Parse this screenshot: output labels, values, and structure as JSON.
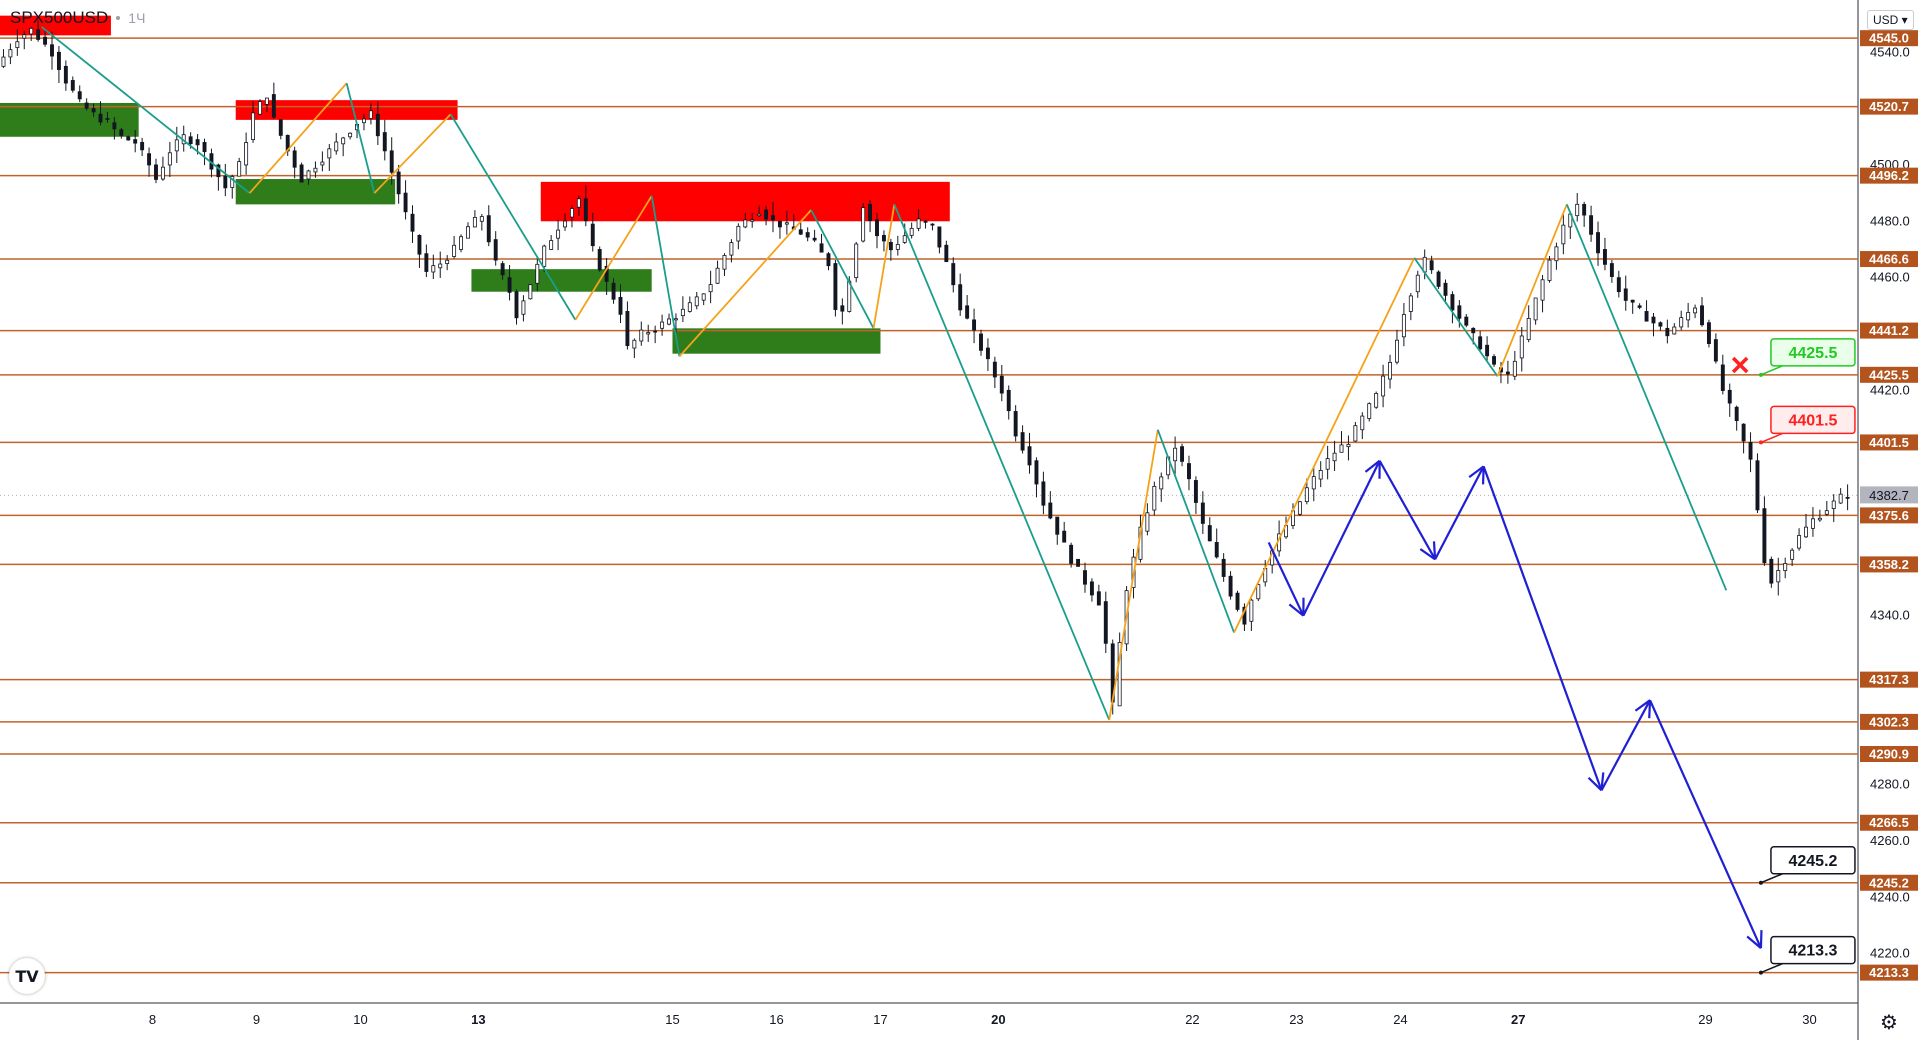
{
  "header": {
    "symbol": "SPX500USD",
    "timeframe": "1Ч"
  },
  "currency_button": "USD",
  "logo_text": "TV",
  "colors": {
    "level_line": "#c0632a",
    "level_label_bg": "#b3541e",
    "supply_zone": "#ff0000",
    "demand_zone": "#2e7d1a",
    "zigzag_down": "#1a9e8c",
    "zigzag_up": "#f5a21b",
    "projection": "#1f1fd6",
    "candle": "#131722",
    "axis_text": "#131722",
    "current_price_bg": "#b2b5be"
  },
  "chart_data": {
    "type": "candlestick",
    "symbol": "SPX500USD",
    "timeframe": "1Ч",
    "y_range": [
      4205,
      4555
    ],
    "y_ticks": [
      "4220.0",
      "4240.0",
      "4260.0",
      "4280.0",
      "4340.0",
      "4420.0",
      "4460.0",
      "4480.0",
      "4500.0",
      "4540.0"
    ],
    "x_ticks": [
      {
        "label": "8",
        "bold": false
      },
      {
        "label": "9",
        "bold": false
      },
      {
        "label": "10",
        "bold": false
      },
      {
        "label": "13",
        "bold": true
      },
      {
        "label": "15",
        "bold": false
      },
      {
        "label": "16",
        "bold": false
      },
      {
        "label": "17",
        "bold": false
      },
      {
        "label": "20",
        "bold": true
      },
      {
        "label": "22",
        "bold": false
      },
      {
        "label": "23",
        "bold": false
      },
      {
        "label": "24",
        "bold": false
      },
      {
        "label": "27",
        "bold": true
      },
      {
        "label": "29",
        "bold": false
      },
      {
        "label": "30",
        "bold": false
      }
    ],
    "levels": [
      "4545.0",
      "4520.7",
      "4496.2",
      "4466.6",
      "4441.2",
      "4425.5",
      "4401.5",
      "4375.6",
      "4358.2",
      "4317.3",
      "4302.3",
      "4290.9",
      "4266.5",
      "4245.2",
      "4213.3"
    ],
    "current_price": "4382.7",
    "price_path": [
      [
        0,
        4535
      ],
      [
        3,
        4545
      ],
      [
        5,
        4548
      ],
      [
        8,
        4540
      ],
      [
        10,
        4530
      ],
      [
        12,
        4522
      ],
      [
        14,
        4518
      ],
      [
        16,
        4515
      ],
      [
        18,
        4510
      ],
      [
        20,
        4508
      ],
      [
        22,
        4500
      ],
      [
        23,
        4495
      ],
      [
        25,
        4505
      ],
      [
        27,
        4510
      ],
      [
        29,
        4508
      ],
      [
        31,
        4500
      ],
      [
        33,
        4492
      ],
      [
        35,
        4500
      ],
      [
        37,
        4518
      ],
      [
        39,
        4525
      ],
      [
        40,
        4516
      ],
      [
        42,
        4505
      ],
      [
        44,
        4495
      ],
      [
        46,
        4500
      ],
      [
        48,
        4505
      ],
      [
        50,
        4510
      ],
      [
        52,
        4515
      ],
      [
        54,
        4518
      ],
      [
        56,
        4505
      ],
      [
        58,
        4490
      ],
      [
        60,
        4475
      ],
      [
        62,
        4462
      ],
      [
        64,
        4465
      ],
      [
        66,
        4470
      ],
      [
        68,
        4478
      ],
      [
        70,
        4482
      ],
      [
        72,
        4465
      ],
      [
        74,
        4455
      ],
      [
        75,
        4447
      ],
      [
        77,
        4458
      ],
      [
        79,
        4470
      ],
      [
        81,
        4478
      ],
      [
        83,
        4485
      ],
      [
        84,
        4488
      ],
      [
        86,
        4470
      ],
      [
        88,
        4458
      ],
      [
        90,
        4448
      ],
      [
        91,
        4435
      ],
      [
        93,
        4440
      ],
      [
        95,
        4442
      ],
      [
        97,
        4445
      ],
      [
        99,
        4448
      ],
      [
        101,
        4452
      ],
      [
        103,
        4458
      ],
      [
        105,
        4468
      ],
      [
        107,
        4478
      ],
      [
        110,
        4484
      ],
      [
        112,
        4480
      ],
      [
        114,
        4478
      ],
      [
        116,
        4476
      ],
      [
        118,
        4472
      ],
      [
        120,
        4465
      ],
      [
        121,
        4450
      ],
      [
        122,
        4448
      ],
      [
        123,
        4460
      ],
      [
        125,
        4486
      ],
      [
        127,
        4475
      ],
      [
        129,
        4470
      ],
      [
        131,
        4475
      ],
      [
        133,
        4480
      ],
      [
        135,
        4478
      ],
      [
        137,
        4465
      ],
      [
        139,
        4450
      ],
      [
        141,
        4440
      ],
      [
        143,
        4430
      ],
      [
        145,
        4420
      ],
      [
        147,
        4405
      ],
      [
        149,
        4395
      ],
      [
        151,
        4380
      ],
      [
        153,
        4370
      ],
      [
        155,
        4360
      ],
      [
        157,
        4352
      ],
      [
        159,
        4345
      ],
      [
        160,
        4330
      ],
      [
        161,
        4308
      ],
      [
        162,
        4330
      ],
      [
        163,
        4350
      ],
      [
        165,
        4370
      ],
      [
        167,
        4385
      ],
      [
        169,
        4395
      ],
      [
        170,
        4400
      ],
      [
        172,
        4388
      ],
      [
        174,
        4372
      ],
      [
        176,
        4360
      ],
      [
        178,
        4348
      ],
      [
        180,
        4338
      ],
      [
        181,
        4346
      ],
      [
        183,
        4358
      ],
      [
        185,
        4368
      ],
      [
        187,
        4376
      ],
      [
        189,
        4385
      ],
      [
        191,
        4392
      ],
      [
        193,
        4398
      ],
      [
        195,
        4402
      ],
      [
        197,
        4410
      ],
      [
        199,
        4418
      ],
      [
        201,
        4430
      ],
      [
        203,
        4448
      ],
      [
        205,
        4462
      ],
      [
        206,
        4466
      ],
      [
        208,
        4458
      ],
      [
        210,
        4450
      ],
      [
        212,
        4442
      ],
      [
        214,
        4436
      ],
      [
        216,
        4428
      ],
      [
        218,
        4425
      ],
      [
        220,
        4438
      ],
      [
        222,
        4452
      ],
      [
        224,
        4466
      ],
      [
        226,
        4478
      ],
      [
        228,
        4486
      ],
      [
        229,
        4482
      ],
      [
        231,
        4470
      ],
      [
        233,
        4460
      ],
      [
        235,
        4452
      ],
      [
        237,
        4448
      ],
      [
        239,
        4444
      ],
      [
        241,
        4440
      ],
      [
        243,
        4445
      ],
      [
        245,
        4450
      ],
      [
        247,
        4438
      ],
      [
        249,
        4420
      ],
      [
        251,
        4408
      ],
      [
        253,
        4395
      ],
      [
        254,
        4378
      ],
      [
        255,
        4360
      ],
      [
        256,
        4352
      ],
      [
        258,
        4360
      ],
      [
        260,
        4368
      ],
      [
        262,
        4374
      ],
      [
        264,
        4378
      ],
      [
        266,
        4382
      ],
      [
        267,
        4383
      ]
    ],
    "zones": [
      {
        "kind": "supply",
        "x1": 0,
        "x2": 16,
        "y1": 4546,
        "y2": 4553
      },
      {
        "kind": "demand",
        "x1": 0,
        "x2": 20,
        "y1": 4510,
        "y2": 4522
      },
      {
        "kind": "supply",
        "x1": 34,
        "x2": 66,
        "y1": 4516,
        "y2": 4523
      },
      {
        "kind": "demand",
        "x1": 34,
        "x2": 57,
        "y1": 4486,
        "y2": 4495
      },
      {
        "kind": "supply",
        "x1": 78,
        "x2": 137,
        "y1": 4480,
        "y2": 4494
      },
      {
        "kind": "demand",
        "x1": 68,
        "x2": 94,
        "y1": 4455,
        "y2": 4463
      },
      {
        "kind": "demand",
        "x1": 97,
        "x2": 127,
        "y1": 4433,
        "y2": 4442
      }
    ],
    "zigzag": [
      [
        6,
        4549
      ],
      [
        36,
        4490
      ],
      [
        50,
        4529
      ],
      [
        54,
        4490
      ],
      [
        65,
        4518
      ],
      [
        83,
        4445
      ],
      [
        94,
        4489
      ],
      [
        98,
        4432
      ],
      [
        117,
        4484
      ],
      [
        126,
        4442
      ],
      [
        129,
        4486
      ],
      [
        160,
        4303
      ],
      [
        167,
        4406
      ],
      [
        178,
        4334
      ],
      [
        204,
        4467
      ],
      [
        216,
        4425
      ],
      [
        226,
        4486
      ],
      [
        249,
        4349
      ]
    ],
    "projection": [
      [
        183,
        4366
      ],
      [
        188,
        4340
      ],
      [
        199,
        4395
      ],
      [
        207,
        4360
      ],
      [
        214,
        4393
      ],
      [
        231,
        4278
      ],
      [
        238,
        4310
      ],
      [
        254,
        4222
      ]
    ],
    "callouts": [
      {
        "label": "4425.5",
        "style": "target",
        "x": 254,
        "y": 4425.5
      },
      {
        "label": "4401.5",
        "style": "stop",
        "x": 254,
        "y": 4401.5
      },
      {
        "label": "4245.2",
        "style": "neutral",
        "x": 254,
        "y": 4245.2
      },
      {
        "label": "4213.3",
        "style": "neutral",
        "x": 254,
        "y": 4213.3
      }
    ],
    "x_axis_ticks_at": [
      22,
      37,
      52,
      69,
      97,
      112,
      127,
      144,
      172,
      187,
      202,
      219,
      246,
      261
    ]
  }
}
